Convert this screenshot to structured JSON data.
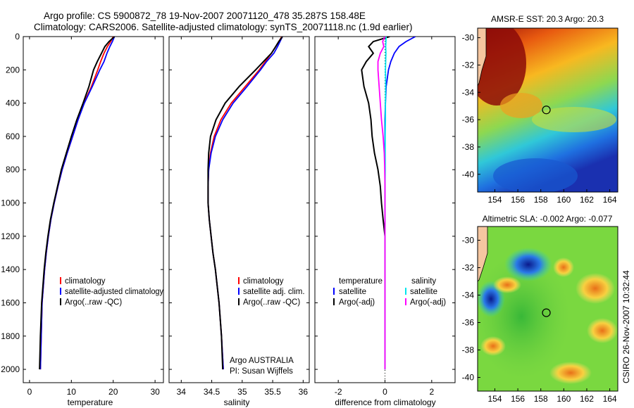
{
  "header": {
    "line1": "Argo profile: CS 5900872_78 19-Nov-2007 20071120_478 35.287S 158.48E",
    "line2": "Climatology: CARS2006. Satellite-adjusted climatology: synTS_20071118.nc (1.9d earlier)"
  },
  "footer": {
    "credit": "CSIRO 26-Nov-2007 10:32:44"
  },
  "colors": {
    "climatology": "#ff0000",
    "satellite": "#0000ff",
    "argo": "#000000",
    "sal_satellite": "#00e5ee",
    "sal_argo": "#ff00ff"
  },
  "chart_data": [
    {
      "type": "line",
      "id": "temperature",
      "xlabel": "temperature",
      "ylabel": "",
      "xlim": [
        -1.5,
        32
      ],
      "ylim": [
        2080,
        0
      ],
      "xticks": [
        0,
        10,
        20,
        30
      ],
      "yticks": [
        0,
        200,
        400,
        600,
        800,
        1000,
        1200,
        1400,
        1600,
        1800,
        2000
      ],
      "series": [
        {
          "name": "climatology",
          "color": "#ff0000",
          "x": [
            20.0,
            19.4,
            18.6,
            17.8,
            17.0,
            16.3,
            14.8,
            13.0,
            11.6,
            10.3,
            9.0,
            7.8,
            6.8,
            5.9,
            5.1,
            4.5,
            4.0,
            3.6,
            3.3,
            3.0,
            2.8,
            2.6
          ],
          "y": [
            0,
            30,
            60,
            100,
            150,
            200,
            300,
            400,
            500,
            600,
            700,
            800,
            900,
            1000,
            1100,
            1200,
            1300,
            1400,
            1500,
            1600,
            1800,
            2000
          ]
        },
        {
          "name": "satellite-adjusted climatology",
          "color": "#0000ff",
          "x": [
            20.3,
            19.8,
            19.2,
            18.5,
            17.8,
            16.8,
            15.0,
            13.1,
            11.6,
            10.3,
            9.0,
            7.8,
            6.8,
            5.9,
            5.1,
            4.5,
            4.0,
            3.6,
            3.3,
            3.0,
            2.8,
            2.6
          ],
          "y": [
            0,
            30,
            60,
            100,
            150,
            200,
            300,
            400,
            500,
            600,
            700,
            800,
            900,
            1000,
            1100,
            1200,
            1300,
            1400,
            1500,
            1600,
            1800,
            2000
          ]
        },
        {
          "name": "Argo(..raw -QC)",
          "color": "#000000",
          "x": [
            20.3,
            19.0,
            18.0,
            17.2,
            16.2,
            15.3,
            14.2,
            12.8,
            11.3,
            10.0,
            8.8,
            7.6,
            6.7,
            5.8,
            5.0,
            4.4,
            3.9,
            3.5,
            3.2,
            2.9,
            2.6,
            2.4
          ],
          "y": [
            0,
            30,
            60,
            100,
            150,
            200,
            300,
            400,
            500,
            600,
            700,
            800,
            900,
            1000,
            1100,
            1200,
            1300,
            1400,
            1500,
            1600,
            1800,
            2000
          ]
        }
      ],
      "legend": [
        "climatology",
        "satellite-adjusted climatology",
        "Argo(..raw -QC)"
      ],
      "legend_position": "lower-right"
    },
    {
      "type": "line",
      "id": "salinity",
      "xlabel": "salinity",
      "xlim": [
        33.8,
        36.1
      ],
      "ylim": [
        2080,
        0
      ],
      "xticks": [
        34,
        34.5,
        35,
        35.5,
        36
      ],
      "yticks": [],
      "series": [
        {
          "name": "climatology",
          "color": "#ff0000",
          "x": [
            35.65,
            35.6,
            35.55,
            35.48,
            35.38,
            35.28,
            35.05,
            34.82,
            34.65,
            34.54,
            34.48,
            34.45,
            34.44,
            34.44,
            34.46,
            34.49,
            34.52,
            34.56,
            34.59,
            34.62,
            34.66,
            34.69
          ],
          "y": [
            0,
            30,
            60,
            100,
            150,
            200,
            300,
            400,
            500,
            600,
            700,
            800,
            900,
            1000,
            1100,
            1200,
            1300,
            1400,
            1500,
            1600,
            1800,
            2000
          ]
        },
        {
          "name": "satellite adj. clim.",
          "color": "#0000ff",
          "x": [
            35.66,
            35.62,
            35.58,
            35.52,
            35.4,
            35.3,
            35.08,
            34.85,
            34.68,
            34.56,
            34.49,
            34.45,
            34.44,
            34.44,
            34.46,
            34.49,
            34.52,
            34.56,
            34.59,
            34.62,
            34.66,
            34.69
          ],
          "y": [
            0,
            30,
            60,
            100,
            150,
            200,
            300,
            400,
            500,
            600,
            700,
            800,
            900,
            1000,
            1100,
            1200,
            1300,
            1400,
            1500,
            1600,
            1800,
            2000
          ]
        },
        {
          "name": "Argo(..raw -QC)",
          "color": "#000000",
          "x": [
            35.66,
            35.6,
            35.55,
            35.48,
            35.35,
            35.22,
            34.95,
            34.72,
            34.57,
            34.48,
            34.45,
            34.44,
            34.44,
            34.44,
            34.46,
            34.49,
            34.52,
            34.56,
            34.59,
            34.62,
            34.66,
            34.68
          ],
          "y": [
            0,
            30,
            60,
            100,
            150,
            200,
            300,
            400,
            500,
            600,
            700,
            800,
            900,
            1000,
            1100,
            1200,
            1300,
            1400,
            1500,
            1600,
            1800,
            2000
          ]
        }
      ],
      "legend": [
        "climatology",
        "satellite adj. clim.",
        "Argo(..raw -QC)"
      ],
      "legend_position": "lower-right",
      "annotation": {
        "line1": "Argo AUSTRALIA",
        "line2": "PI: Susan Wijffels"
      }
    },
    {
      "type": "line",
      "id": "difference",
      "xlabel": "difference from climatology",
      "xlim": [
        -3.0,
        3.0
      ],
      "ylim": [
        2080,
        0
      ],
      "xticks": [
        -2,
        0,
        2
      ],
      "yticks": [],
      "series": [
        {
          "name": "temperature satellite",
          "color": "#0000ff",
          "x": [
            1.3,
            0.9,
            0.6,
            0.4,
            0.25,
            0.15,
            0.05,
            0.02,
            0.0,
            0.0,
            0.0,
            0.0,
            0.0,
            0.0,
            0.0,
            0.0,
            0.0,
            0.0,
            0.0,
            0.0,
            0.0,
            0.0
          ],
          "y": [
            0,
            30,
            60,
            100,
            150,
            200,
            300,
            400,
            500,
            600,
            700,
            800,
            900,
            1000,
            1100,
            1200,
            1300,
            1400,
            1500,
            1600,
            1800,
            2000
          ]
        },
        {
          "name": "temperature Argo(-adj)",
          "color": "#000000",
          "x": [
            0.2,
            -0.5,
            -0.7,
            -0.5,
            -0.8,
            -1.0,
            -0.9,
            -0.7,
            -0.6,
            -0.55,
            -0.45,
            -0.3,
            -0.2,
            -0.15,
            -0.08,
            0.0,
            0.0,
            0.0,
            0.0,
            0.0,
            0.0,
            0.0
          ],
          "y": [
            0,
            30,
            60,
            100,
            150,
            200,
            300,
            400,
            500,
            600,
            700,
            800,
            900,
            1000,
            1100,
            1200,
            1300,
            1400,
            1500,
            1600,
            1800,
            2000
          ]
        },
        {
          "name": "salinity satellite",
          "color": "#00e5ee",
          "x": [
            0.05,
            0.04,
            0.03,
            0.04,
            0.03,
            0.02,
            0.03,
            0.02,
            0.02,
            0.01,
            0.01,
            0.01,
            0.0,
            0.0,
            0.0,
            0.0,
            0.0,
            0.0,
            0.0,
            0.0,
            0.0,
            0.0
          ],
          "y": [
            0,
            30,
            60,
            100,
            150,
            200,
            300,
            400,
            500,
            600,
            700,
            800,
            900,
            1000,
            1100,
            1200,
            1300,
            1400,
            1500,
            1600,
            1800,
            2000
          ]
        },
        {
          "name": "salinity Argo(-adj)",
          "color": "#ff00ff",
          "x": [
            0.0,
            -0.1,
            -0.05,
            -0.2,
            -0.3,
            -0.3,
            -0.25,
            -0.2,
            -0.15,
            -0.08,
            -0.03,
            -0.01,
            0.0,
            0.0,
            0.0,
            0.0,
            0.0,
            0.0,
            0.0,
            0.0,
            0.0,
            0.0
          ],
          "y": [
            0,
            30,
            60,
            100,
            150,
            200,
            300,
            400,
            500,
            600,
            700,
            800,
            900,
            1000,
            1100,
            1200,
            1300,
            1400,
            1500,
            1600,
            1800,
            2000
          ]
        }
      ],
      "legend_headers": [
        "temperature",
        "salinity"
      ],
      "legend": [
        "satellite",
        "Argo(-adj)",
        "satellite",
        "Argo(-adj)"
      ],
      "legend_position": "lower-center"
    },
    {
      "type": "heatmap",
      "id": "sst_map",
      "title": "AMSR-E SST: 20.3 Argo: 20.3",
      "xlim": [
        152.5,
        164.7
      ],
      "ylim": [
        -41.3,
        -29.3
      ],
      "xticks": [
        154,
        156,
        158,
        160,
        162,
        164
      ],
      "yticks": [
        -30,
        -32,
        -34,
        -36,
        -38,
        -40
      ],
      "float_position": {
        "lon": 158.48,
        "lat": -35.287
      }
    },
    {
      "type": "heatmap",
      "id": "sla_map",
      "title": "Altimetric SLA: -0.002 Argo: -0.077",
      "xlim": [
        152.5,
        164.7
      ],
      "ylim": [
        -41.0,
        -29.0
      ],
      "xticks": [
        154,
        156,
        158,
        160,
        162,
        164
      ],
      "yticks": [
        -30,
        -32,
        -34,
        -36,
        -38,
        -40
      ],
      "float_position": {
        "lon": 158.48,
        "lat": -35.287
      }
    }
  ]
}
